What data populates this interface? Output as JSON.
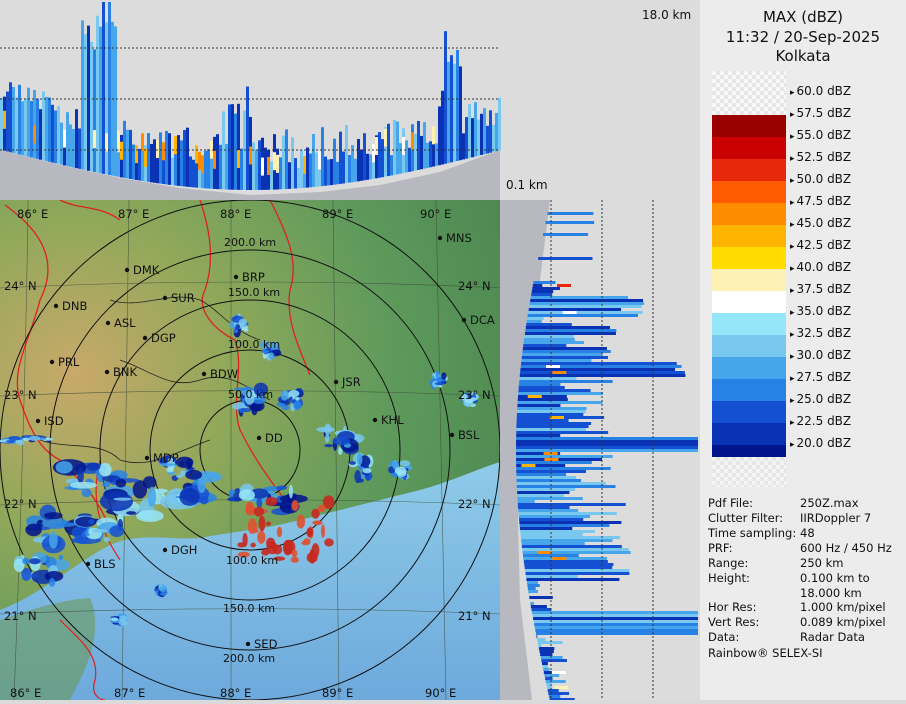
{
  "header": {
    "product": "MAX (dBZ)",
    "datetime": "11:32 / 20-Sep-2025",
    "station": "Kolkata"
  },
  "height_labels": {
    "top": "18.0 km",
    "bottom": "0.1 km"
  },
  "legend": [
    {
      "label": "60.0 dBZ",
      "color": "#f0f0f0"
    },
    {
      "label": "57.5 dBZ",
      "color": "#9a0000"
    },
    {
      "label": "55.0 dBZ",
      "color": "#c80000"
    },
    {
      "label": "52.5 dBZ",
      "color": "#e8280a"
    },
    {
      "label": "50.0 dBZ",
      "color": "#ff5a00"
    },
    {
      "label": "47.5 dBZ",
      "color": "#ff8c00"
    },
    {
      "label": "45.0 dBZ",
      "color": "#ffb400"
    },
    {
      "label": "42.5 dBZ",
      "color": "#ffdc00"
    },
    {
      "label": "40.0 dBZ",
      "color": "#fff0b4"
    },
    {
      "label": "37.5 dBZ",
      "color": "#ffffff"
    },
    {
      "label": "35.0 dBZ",
      "color": "#96e6fa"
    },
    {
      "label": "32.5 dBZ",
      "color": "#78c8f0"
    },
    {
      "label": "30.0 dBZ",
      "color": "#46a5eb"
    },
    {
      "label": "27.5 dBZ",
      "color": "#2882e6"
    },
    {
      "label": "25.0 dBZ",
      "color": "#1450d2"
    },
    {
      "label": "22.5 dBZ",
      "color": "#0a32b4"
    },
    {
      "label": "20.0 dBZ",
      "color": "#00148c"
    }
  ],
  "meta": [
    {
      "key": "Pdf File:",
      "value": "250Z.max"
    },
    {
      "key": "Clutter Filter:",
      "value": "IIRDoppler 7"
    },
    {
      "key": "Time sampling:",
      "value": "48"
    },
    {
      "key": "PRF:",
      "value": "600 Hz / 450 Hz"
    },
    {
      "key": "Range:",
      "value": "250 km"
    },
    {
      "key": "Height:",
      "value": "0.100 km to 18.000 km"
    },
    {
      "key": "Hor Res:",
      "value": "1.000 km/pixel"
    },
    {
      "key": "Vert Res:",
      "value": "0.089 km/pixel"
    },
    {
      "key": "Data:",
      "value": "Radar Data"
    }
  ],
  "footer": "Rainbow® SELEX-SI",
  "map": {
    "lon_labels_top": [
      "86° E",
      "87° E",
      "88° E",
      "89° E",
      "90° E"
    ],
    "lon_labels_bottom": [
      "86° E",
      "87° E",
      "88° E",
      "89° E",
      "90° E"
    ],
    "lat_labels": [
      "24° N",
      "23° N",
      "22° N",
      "21° N"
    ],
    "lat_labels_right": [
      "24° N",
      "23° N",
      "22° N",
      "21° N"
    ],
    "range_rings": [
      "50.0 km",
      "100.0 km",
      "150.0 km",
      "200.0 km"
    ],
    "range_rings_south": [
      "100.0 km",
      "150.0 km",
      "200.0 km"
    ],
    "cities": [
      "MNS",
      "DMK",
      "BRP",
      "DNB",
      "SUR",
      "DCA",
      "ASL",
      "DGP",
      "PRL",
      "BNK",
      "BDW",
      "JSR",
      "KHL",
      "ISD",
      "DD",
      "BSL",
      "MDP",
      "DGH",
      "BLS",
      "SED"
    ]
  }
}
